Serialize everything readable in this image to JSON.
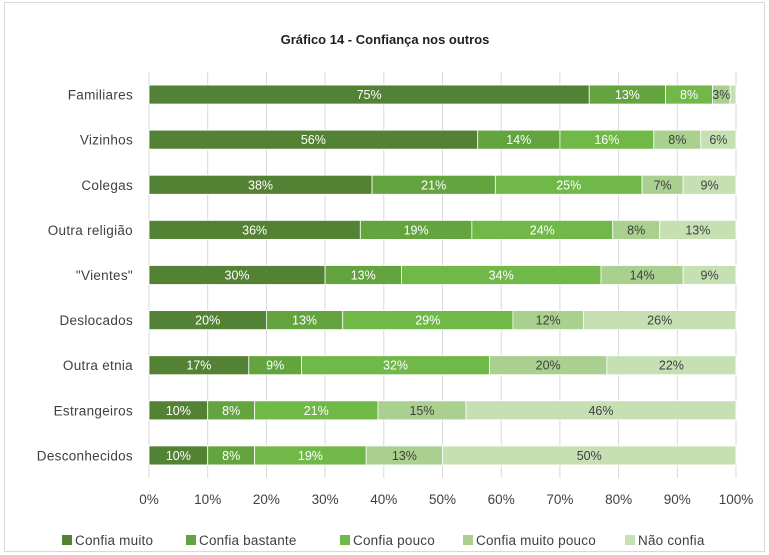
{
  "chart_data": {
    "type": "bar",
    "orientation": "horizontal",
    "stacked": true,
    "title": "Gráfico 14 - Confiança nos outros",
    "xlabel": "",
    "ylabel": "",
    "xlim": [
      0,
      100
    ],
    "x_ticks": [
      "0%",
      "10%",
      "20%",
      "30%",
      "40%",
      "50%",
      "60%",
      "70%",
      "80%",
      "90%",
      "100%"
    ],
    "grid": true,
    "legend_position": "bottom",
    "categories": [
      "Familiares",
      "Vizinhos",
      "Colegas",
      "Outra religião",
      "\"Vientes\"",
      "Deslocados",
      "Outra etnia",
      "Estrangeiros",
      "Desconhecidos"
    ],
    "series": [
      {
        "name": "Confia muito",
        "color": "#548235",
        "values": [
          75,
          56,
          38,
          36,
          30,
          20,
          17,
          10,
          10
        ],
        "labels": [
          "75%",
          "56%",
          "38%",
          "36%",
          "30%",
          "20%",
          "17%",
          "10%",
          "10%"
        ]
      },
      {
        "name": "Confia bastante",
        "color": "#63a43f",
        "values": [
          13,
          14,
          21,
          19,
          13,
          13,
          9,
          8,
          8
        ],
        "labels": [
          "13%",
          "14%",
          "21%",
          "19%",
          "13%",
          "13%",
          "9%",
          "8%",
          "8%"
        ]
      },
      {
        "name": "Confia pouco",
        "color": "#70b847",
        "values": [
          8,
          16,
          25,
          24,
          34,
          29,
          32,
          21,
          19
        ],
        "labels": [
          "8%",
          "16%",
          "25%",
          "24%",
          "34%",
          "29%",
          "32%",
          "21%",
          "19%"
        ]
      },
      {
        "name": "Confia muito pouco",
        "color": "#a9d08e",
        "values": [
          3,
          8,
          7,
          8,
          14,
          12,
          20,
          15,
          13
        ],
        "labels": [
          "3%",
          "8%",
          "7%",
          "8%",
          "14%",
          "12%",
          "20%",
          "15%",
          "13%"
        ]
      },
      {
        "name": "Não confia",
        "color": "#c6e0b4",
        "values": [
          1,
          6,
          9,
          13,
          9,
          26,
          22,
          46,
          50
        ],
        "labels": [
          "",
          "6%",
          "9%",
          "13%",
          "9%",
          "26%",
          "22%",
          "46%",
          "50%"
        ]
      }
    ]
  }
}
